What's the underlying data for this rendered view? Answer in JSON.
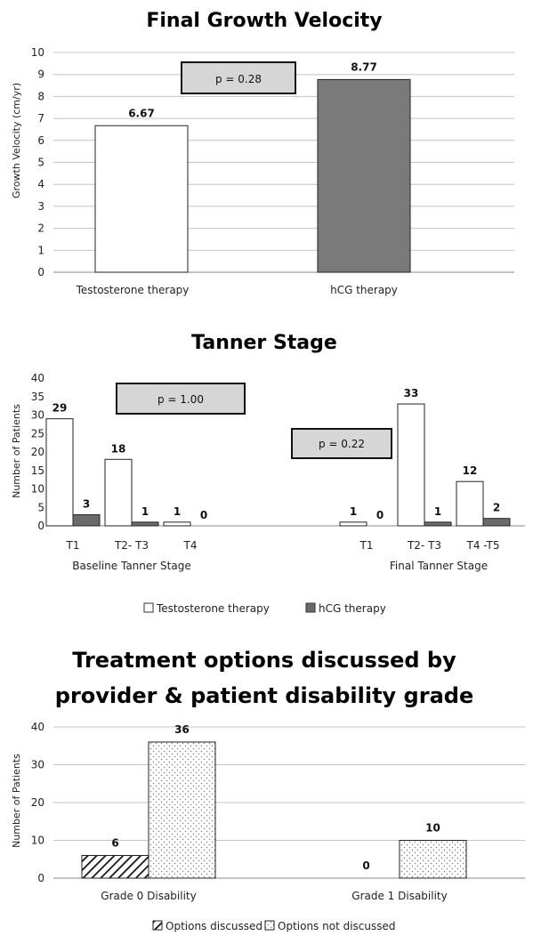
{
  "chart_data": [
    {
      "type": "bar",
      "title": "Final Growth Velocity",
      "ylabel": "Growth Velocity (cm/yr)",
      "ylim": [
        0,
        10
      ],
      "yticks": [
        0,
        1,
        2,
        3,
        4,
        5,
        6,
        7,
        8,
        9,
        10
      ],
      "grid": true,
      "categories": [
        "Testosterone therapy",
        "hCG therapy"
      ],
      "values": [
        6.67,
        8.77
      ],
      "data_labels": [
        "6.67",
        "8.77"
      ],
      "bar_colors": [
        "#ffffff",
        "#7a7a7a"
      ],
      "annotation": "p = 0.28"
    },
    {
      "type": "bar",
      "title": "Tanner Stage",
      "ylabel": "Number of Patients",
      "ylim": [
        0,
        40
      ],
      "yticks": [
        0,
        5,
        10,
        15,
        20,
        25,
        30,
        35,
        40
      ],
      "grid": false,
      "groups": [
        {
          "label": "Baseline Tanner Stage",
          "categories": [
            "T1",
            "T2- T3",
            "T4"
          ],
          "annotation": "p = 1.00"
        },
        {
          "label": "Final Tanner Stage",
          "categories": [
            "T1",
            "T2- T3",
            "T4 -T5"
          ],
          "annotation": "p = 0.22"
        }
      ],
      "series": [
        {
          "name": "Testosterone therapy",
          "color": "#ffffff",
          "values": [
            29,
            18,
            1,
            1,
            33,
            12
          ]
        },
        {
          "name": "hCG therapy",
          "color": "#6b6b6b",
          "values": [
            3,
            1,
            0,
            0,
            1,
            2
          ]
        }
      ],
      "legend": "bottom"
    },
    {
      "type": "bar",
      "title_lines": [
        "Treatment options discussed by",
        "provider & patient disability grade"
      ],
      "ylabel": "Number of Patients",
      "ylim": [
        0,
        40
      ],
      "yticks": [
        0,
        10,
        20,
        30,
        40
      ],
      "grid": true,
      "categories": [
        "Grade 0 Disability",
        "Grade 1 Disability"
      ],
      "series": [
        {
          "name": "Options discussed",
          "pattern": "diagonal-hatch",
          "values": [
            6,
            0
          ]
        },
        {
          "name": "Options not discussed",
          "pattern": "dots",
          "values": [
            36,
            10
          ]
        }
      ],
      "legend": "bottom"
    }
  ]
}
